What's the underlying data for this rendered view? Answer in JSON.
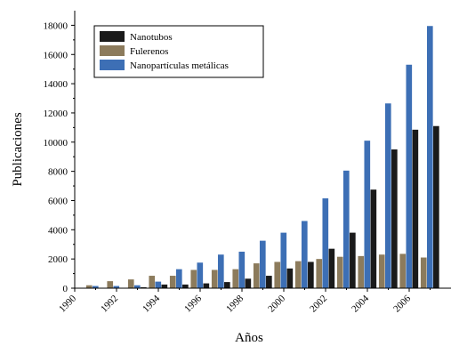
{
  "chart_data": {
    "type": "bar",
    "xlabel": "Años",
    "ylabel": "Publicaciones",
    "ylim": [
      0,
      19000
    ],
    "xlim": [
      1990,
      2008
    ],
    "x_tick_labels": [
      "1990",
      "1992",
      "1994",
      "1996",
      "1998",
      "2000",
      "2002",
      "2004",
      "2006"
    ],
    "y_tick_labels": [
      "0",
      "2000",
      "4000",
      "6000",
      "8000",
      "10000",
      "12000",
      "14000",
      "16000",
      "18000"
    ],
    "legend_position": "top-left",
    "grid": false,
    "categories": [
      1991,
      1992,
      1993,
      1994,
      1995,
      1996,
      1997,
      1998,
      1999,
      2000,
      2001,
      2002,
      2003,
      2004,
      2005,
      2006,
      2007
    ],
    "series": [
      {
        "name": "Nanotubos",
        "color": "#1a1a1a",
        "values": [
          10,
          20,
          60,
          250,
          250,
          330,
          420,
          650,
          850,
          1350,
          1800,
          2700,
          3800,
          6750,
          9500,
          10850,
          11100
        ]
      },
      {
        "name": "Fulerenos",
        "color": "#8c7b5c",
        "values": [
          200,
          480,
          600,
          850,
          850,
          1250,
          1250,
          1300,
          1700,
          1800,
          1850,
          2000,
          2150,
          2200,
          2300,
          2350,
          2100
        ]
      },
      {
        "name": "Nanopartículas metálicas",
        "color": "#3d6fb5",
        "values": [
          150,
          150,
          200,
          450,
          1300,
          1750,
          2300,
          2500,
          3250,
          3800,
          4600,
          6150,
          8050,
          10100,
          12650,
          15300,
          17950
        ]
      }
    ]
  }
}
